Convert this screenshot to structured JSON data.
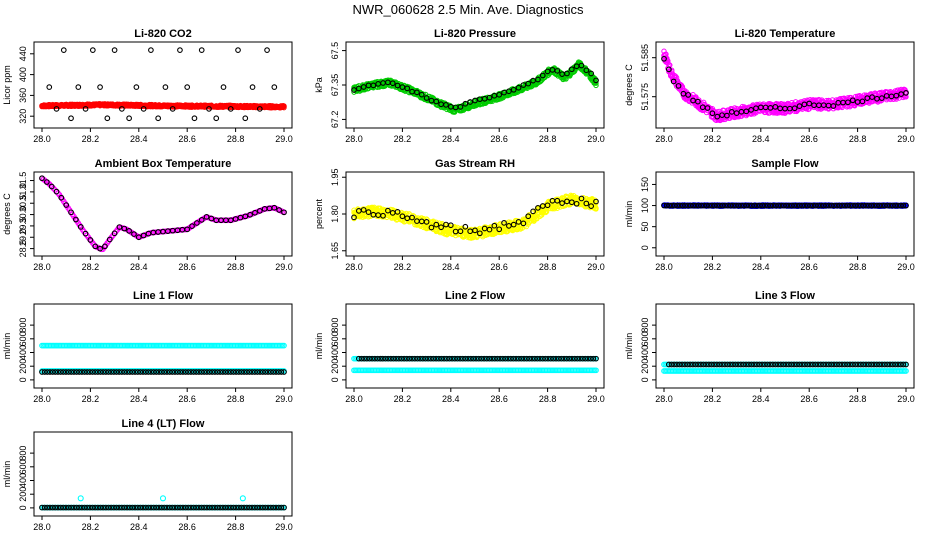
{
  "figure": {
    "title": "NWR_060628  2.5 Min. Ave. Diagnostics"
  },
  "chart_data": [
    {
      "type": "scatter",
      "title": "Li-820 CO2",
      "ylabel": "Licor ppm",
      "xlim": [
        28.0,
        29.0
      ],
      "ylim": [
        305,
        455
      ],
      "xticks": [
        "28.0",
        "28.2",
        "28.4",
        "28.6",
        "28.8",
        "29.0"
      ],
      "yticks": [
        320,
        360,
        400,
        440
      ],
      "series": [
        {
          "name": "band-red",
          "kind": "band",
          "color": "#ff0000",
          "x": [
            28.0,
            28.25,
            28.5,
            28.75,
            29.0
          ],
          "y": [
            340,
            342,
            340,
            339,
            338
          ],
          "width": 4
        },
        {
          "name": "standards-black",
          "kind": "grid",
          "color": "#000000",
          "step": 0.03,
          "levels": [
            316,
            334,
            376,
            447
          ],
          "pattern": [
            0,
            2,
            1,
            3,
            0,
            2,
            1,
            3,
            2,
            0,
            3,
            1
          ]
        }
      ]
    },
    {
      "type": "scatter",
      "title": "Li-820 Pressure",
      "ylabel": "kPa",
      "xlim": [
        28.0,
        29.0
      ],
      "ylim": [
        67.18,
        67.52
      ],
      "xticks": [
        "28.0",
        "28.2",
        "28.4",
        "28.6",
        "28.8",
        "29.0"
      ],
      "yticks": [
        67.2,
        67.35,
        67.5
      ],
      "series": [
        {
          "name": "band-green",
          "kind": "band",
          "color": "#00cc00",
          "x": [
            28.0,
            28.08,
            28.15,
            28.25,
            28.35,
            28.42,
            28.5,
            28.6,
            28.68,
            28.75,
            28.82,
            28.87,
            28.93,
            28.97,
            29.0
          ],
          "y": [
            67.33,
            67.35,
            67.36,
            67.32,
            67.27,
            67.24,
            67.27,
            67.3,
            67.33,
            67.36,
            67.42,
            67.38,
            67.44,
            67.4,
            67.36
          ],
          "width": 0.025
        },
        {
          "name": "points-black",
          "kind": "line-points",
          "color": "#000000",
          "step": 0.02,
          "x": [
            28.0,
            28.08,
            28.15,
            28.25,
            28.35,
            28.42,
            28.5,
            28.6,
            28.68,
            28.75,
            28.82,
            28.87,
            28.93,
            28.97,
            29.0
          ],
          "y": [
            67.33,
            67.35,
            67.36,
            67.32,
            67.27,
            67.25,
            67.28,
            67.31,
            67.34,
            67.37,
            67.42,
            67.39,
            67.44,
            67.41,
            67.37
          ],
          "jitter": 0.008
        }
      ]
    },
    {
      "type": "scatter",
      "title": "Li-820 Temperature",
      "ylabel": "degrees C",
      "xlim": [
        28.0,
        29.0
      ],
      "ylim": [
        51.568,
        51.588
      ],
      "xticks": [
        "28.0",
        "28.2",
        "28.4",
        "28.6",
        "28.8",
        "29.0"
      ],
      "ytick_labels": [
        "51.575",
        "51.585"
      ],
      "yticks": [
        51.575,
        51.585
      ],
      "series": [
        {
          "name": "band-magenta",
          "kind": "band",
          "color": "#ff00ff",
          "x": [
            28.0,
            28.03,
            28.08,
            28.15,
            28.22,
            28.3,
            28.4,
            28.5,
            28.6,
            28.7,
            28.8,
            28.9,
            29.0
          ],
          "y": [
            51.586,
            51.581,
            51.576,
            51.573,
            51.57,
            51.571,
            51.572,
            51.572,
            51.573,
            51.573,
            51.574,
            51.575,
            51.576
          ],
          "width": 0.0025
        },
        {
          "name": "points-black",
          "kind": "line-points",
          "color": "#000000",
          "step": 0.02,
          "x": [
            28.0,
            28.03,
            28.08,
            28.15,
            28.22,
            28.3,
            28.4,
            28.5,
            28.6,
            28.7,
            28.8,
            28.9,
            29.0
          ],
          "y": [
            51.585,
            51.58,
            51.576,
            51.573,
            51.57,
            51.571,
            51.572,
            51.572,
            51.573,
            51.573,
            51.574,
            51.575,
            51.576
          ],
          "jitter": 0.0008
        }
      ]
    },
    {
      "type": "scatter",
      "title": "Ambient Box Temperature",
      "ylabel": "degrees C",
      "xlim": [
        28.0,
        29.0
      ],
      "ylim": [
        28.35,
        31.7
      ],
      "xticks": [
        "28.0",
        "28.2",
        "28.4",
        "28.6",
        "28.8",
        "29.0"
      ],
      "yticks": [
        28.5,
        29.0,
        29.5,
        30.0,
        30.5,
        31.0,
        31.5
      ],
      "ytick_labels": [
        "28.5",
        "29.0",
        "29.5",
        "30.0",
        "30.5",
        "31.0",
        "31.5"
      ],
      "series": [
        {
          "name": "curve-magenta",
          "kind": "line-points",
          "color": "#ff00ff",
          "step": 0.006,
          "x": [
            28.0,
            28.03,
            28.07,
            28.12,
            28.17,
            28.22,
            28.25,
            28.28,
            28.32,
            28.35,
            28.4,
            28.45,
            28.5,
            28.55,
            28.6,
            28.65,
            28.68,
            28.72,
            28.78,
            28.85,
            28.92,
            28.96,
            29.0
          ],
          "y": [
            31.6,
            31.35,
            30.9,
            30.1,
            29.3,
            28.6,
            28.45,
            28.9,
            29.45,
            29.35,
            29.0,
            29.2,
            29.25,
            29.3,
            29.35,
            29.7,
            29.9,
            29.75,
            29.75,
            29.95,
            30.25,
            30.3,
            30.1
          ],
          "jitter": 0
        },
        {
          "name": "points-black",
          "kind": "line-points",
          "color": "#000000",
          "step": 0.02,
          "x": [
            28.0,
            28.03,
            28.07,
            28.12,
            28.17,
            28.22,
            28.25,
            28.28,
            28.32,
            28.35,
            28.4,
            28.45,
            28.5,
            28.55,
            28.6,
            28.65,
            28.68,
            28.72,
            28.78,
            28.85,
            28.92,
            28.96,
            29.0
          ],
          "y": [
            31.6,
            31.35,
            30.9,
            30.1,
            29.3,
            28.6,
            28.45,
            28.9,
            29.45,
            29.35,
            29.0,
            29.2,
            29.25,
            29.3,
            29.35,
            29.7,
            29.9,
            29.75,
            29.75,
            29.95,
            30.25,
            30.3,
            30.1
          ],
          "jitter": 0
        }
      ]
    },
    {
      "type": "scatter",
      "title": "Gas Stream RH",
      "ylabel": "percent",
      "xlim": [
        28.0,
        29.0
      ],
      "ylim": [
        1.645,
        1.955
      ],
      "xticks": [
        "28.0",
        "28.2",
        "28.4",
        "28.6",
        "28.8",
        "29.0"
      ],
      "yticks": [
        1.65,
        1.8,
        1.95
      ],
      "ytick_labels": [
        "1.65",
        "1.80",
        "1.95"
      ],
      "series": [
        {
          "name": "band-yellow",
          "kind": "band",
          "color": "#ffff00",
          "x": [
            28.0,
            28.1,
            28.2,
            28.3,
            28.4,
            28.5,
            28.6,
            28.7,
            28.8,
            28.9,
            29.0
          ],
          "y": [
            1.8,
            1.81,
            1.79,
            1.76,
            1.73,
            1.72,
            1.74,
            1.76,
            1.83,
            1.86,
            1.84
          ],
          "width": 0.04
        },
        {
          "name": "points-black",
          "kind": "line-points",
          "color": "#000000",
          "step": 0.02,
          "x": [
            28.0,
            28.1,
            28.2,
            28.3,
            28.4,
            28.5,
            28.6,
            28.7,
            28.8,
            28.9,
            29.0
          ],
          "y": [
            1.8,
            1.81,
            1.79,
            1.76,
            1.74,
            1.73,
            1.75,
            1.77,
            1.84,
            1.86,
            1.84
          ],
          "jitter": 0.03
        }
      ]
    },
    {
      "type": "scatter",
      "title": "Sample Flow",
      "ylabel": "ml/min",
      "xlim": [
        28.0,
        29.0
      ],
      "ylim": [
        -10,
        170
      ],
      "xticks": [
        "28.0",
        "28.2",
        "28.4",
        "28.6",
        "28.8",
        "29.0"
      ],
      "yticks": [
        0,
        50,
        100,
        150
      ],
      "series": [
        {
          "name": "band-blue",
          "kind": "band",
          "color": "#0000ff",
          "x": [
            28.0,
            29.0
          ],
          "y": [
            100,
            100
          ],
          "width": 3
        },
        {
          "name": "points-black",
          "kind": "line-points",
          "color": "#000000",
          "step": 0.011,
          "x": [
            28.0,
            29.0
          ],
          "y": [
            100,
            100
          ],
          "jitter": 0
        }
      ]
    },
    {
      "type": "scatter",
      "title": "Line 1 Flow",
      "ylabel": "ml/min",
      "xlim": [
        28.0,
        29.0
      ],
      "ylim": [
        -60,
        1050
      ],
      "xticks": [
        "28.0",
        "28.2",
        "28.4",
        "28.6",
        "28.8",
        "29.0"
      ],
      "yticks": [
        0,
        200,
        400,
        600,
        800
      ],
      "series": [
        {
          "name": "band-cyan-high",
          "kind": "line-points",
          "color": "#00ffff",
          "step": 0.006,
          "x": [
            28.0,
            29.0
          ],
          "y": [
            500,
            500
          ],
          "jitter": 0
        },
        {
          "name": "band-cyan-low",
          "kind": "line-points",
          "color": "#00ffff",
          "step": 0.006,
          "x": [
            28.0,
            29.0
          ],
          "y": [
            130,
            130
          ],
          "jitter": 0
        },
        {
          "name": "points-black",
          "kind": "line-points",
          "color": "#000000",
          "step": 0.011,
          "x": [
            28.0,
            29.0
          ],
          "y": [
            115,
            115
          ],
          "jitter": 0
        }
      ]
    },
    {
      "type": "scatter",
      "title": "Line 2 Flow",
      "ylabel": "ml/min",
      "xlim": [
        28.0,
        29.0
      ],
      "ylim": [
        -60,
        1050
      ],
      "xticks": [
        "28.0",
        "28.2",
        "28.4",
        "28.6",
        "28.8",
        "29.0"
      ],
      "yticks": [
        0,
        200,
        400,
        600,
        800
      ],
      "series": [
        {
          "name": "band-cyan-high",
          "kind": "line-points",
          "color": "#00ffff",
          "step": 0.006,
          "x": [
            28.0,
            29.0
          ],
          "y": [
            310,
            310
          ],
          "jitter": 0
        },
        {
          "name": "band-cyan-low",
          "kind": "line-points",
          "color": "#00ffff",
          "step": 0.006,
          "x": [
            28.0,
            29.0
          ],
          "y": [
            140,
            140
          ],
          "jitter": 0
        },
        {
          "name": "points-black",
          "kind": "line-points",
          "color": "#000000",
          "step": 0.011,
          "x": [
            28.02,
            29.0
          ],
          "y": [
            310,
            310
          ],
          "jitter": 0
        }
      ]
    },
    {
      "type": "scatter",
      "title": "Line 3 Flow",
      "ylabel": "ml/min",
      "xlim": [
        28.0,
        29.0
      ],
      "ylim": [
        -60,
        1050
      ],
      "xticks": [
        "28.0",
        "28.2",
        "28.4",
        "28.6",
        "28.8",
        "29.0"
      ],
      "yticks": [
        0,
        200,
        400,
        600,
        800
      ],
      "series": [
        {
          "name": "band-cyan-high",
          "kind": "line-points",
          "color": "#00ffff",
          "step": 0.006,
          "x": [
            28.0,
            29.0
          ],
          "y": [
            225,
            225
          ],
          "jitter": 0
        },
        {
          "name": "band-cyan-low",
          "kind": "line-points",
          "color": "#00ffff",
          "step": 0.006,
          "x": [
            28.0,
            29.0
          ],
          "y": [
            130,
            130
          ],
          "jitter": 0
        },
        {
          "name": "points-black",
          "kind": "line-points",
          "color": "#000000",
          "step": 0.011,
          "x": [
            28.02,
            29.0
          ],
          "y": [
            225,
            225
          ],
          "jitter": 0
        }
      ]
    },
    {
      "type": "scatter",
      "title": "Line 4 (LT) Flow",
      "ylabel": "ml/min",
      "xlim": [
        28.0,
        29.0
      ],
      "ylim": [
        -60,
        1050
      ],
      "xticks": [
        "28.0",
        "28.2",
        "28.4",
        "28.6",
        "28.8",
        "29.0"
      ],
      "yticks": [
        0,
        200,
        400,
        600,
        800
      ],
      "series": [
        {
          "name": "band-cyan",
          "kind": "line-points",
          "color": "#00ffff",
          "step": 0.006,
          "x": [
            28.0,
            29.0
          ],
          "y": [
            5,
            5
          ],
          "jitter": 0
        },
        {
          "name": "points-black",
          "kind": "line-points",
          "color": "#000000",
          "step": 0.011,
          "x": [
            28.0,
            29.0
          ],
          "y": [
            5,
            5
          ],
          "jitter": 0
        },
        {
          "name": "spikes-cyan",
          "kind": "points",
          "color": "#00ffff",
          "x": [
            28.16,
            28.5,
            28.83
          ],
          "y": [
            140,
            140,
            140
          ]
        }
      ]
    }
  ]
}
